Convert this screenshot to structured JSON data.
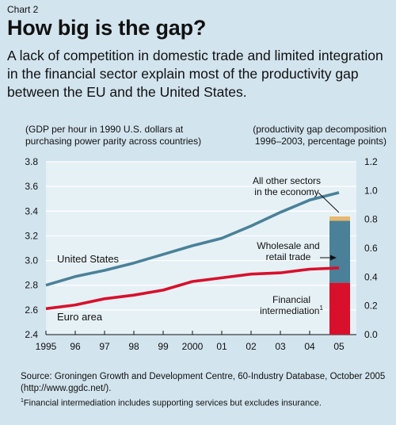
{
  "header": {
    "kicker": "Chart 2",
    "title": "How big is the gap?",
    "subtitle": "A lack of competition in domestic trade and limited integration in the financial sector explain most of the productivity gap between the EU and the United States."
  },
  "notes": {
    "left_axis": [
      "(GDP per hour in 1990 U.S. dollars at",
      "purchasing power parity across countries)"
    ],
    "right_axis": [
      "(productivity gap decomposition",
      "1996–2003, percentage points)"
    ]
  },
  "source": {
    "text": "Source: Groningen Growth and Development Centre, 60-Industry Database, October 2005 (http://www.ggdc.net/).",
    "footnote_mark": "1",
    "footnote": "Financial intermediation includes supporting services but excludes insurance."
  },
  "colors": {
    "background": "#d2e4ee",
    "plot_area": "#e6f1f6",
    "us_line": "#4a8198",
    "euro_line": "#d8102c",
    "bar_financial": "#d8102c",
    "bar_trade": "#4a8198",
    "bar_other": "#e8b86c",
    "grid": "#ffffff"
  },
  "chart_data": {
    "type": "line",
    "x": [
      1995,
      1996,
      1997,
      1998,
      1999,
      2000,
      2001,
      2002,
      2003,
      2004,
      2005
    ],
    "x_tick_labels": [
      "1995",
      "96",
      "97",
      "98",
      "99",
      "2000",
      "01",
      "02",
      "03",
      "04",
      "05"
    ],
    "ylim": [
      2.4,
      3.8
    ],
    "y_ticks": [
      "2.4",
      "2.6",
      "2.8",
      "3.0",
      "3.2",
      "3.4",
      "3.6",
      "3.8"
    ],
    "y2lim": [
      0.0,
      1.2
    ],
    "y2_ticks": [
      "0.0",
      "0.2",
      "0.4",
      "0.6",
      "0.8",
      "1.0",
      "1.2"
    ],
    "grid": true,
    "series": [
      {
        "name": "United States",
        "values": [
          2.8,
          2.87,
          2.92,
          2.98,
          3.05,
          3.12,
          3.18,
          3.28,
          3.39,
          3.49,
          3.55
        ]
      },
      {
        "name": "Euro area",
        "values": [
          2.61,
          2.64,
          2.69,
          2.72,
          2.76,
          2.83,
          2.86,
          2.89,
          2.9,
          2.93,
          2.94
        ]
      }
    ],
    "stacked_bar": {
      "x": 2005,
      "axis": "right",
      "segments": [
        {
          "label": "Financial intermediation",
          "footnote": "1",
          "value": 0.36
        },
        {
          "label": "Wholesale and retail trade",
          "value": 0.43
        },
        {
          "label": "All other sectors in the economy",
          "value": 0.03
        }
      ]
    },
    "annotations": {
      "us": "United States",
      "euro": "Euro area",
      "other": [
        "All other sectors",
        "in the economy"
      ],
      "trade": [
        "Wholesale and",
        "retail trade"
      ],
      "fin": [
        "Financial",
        "intermediation"
      ]
    }
  }
}
